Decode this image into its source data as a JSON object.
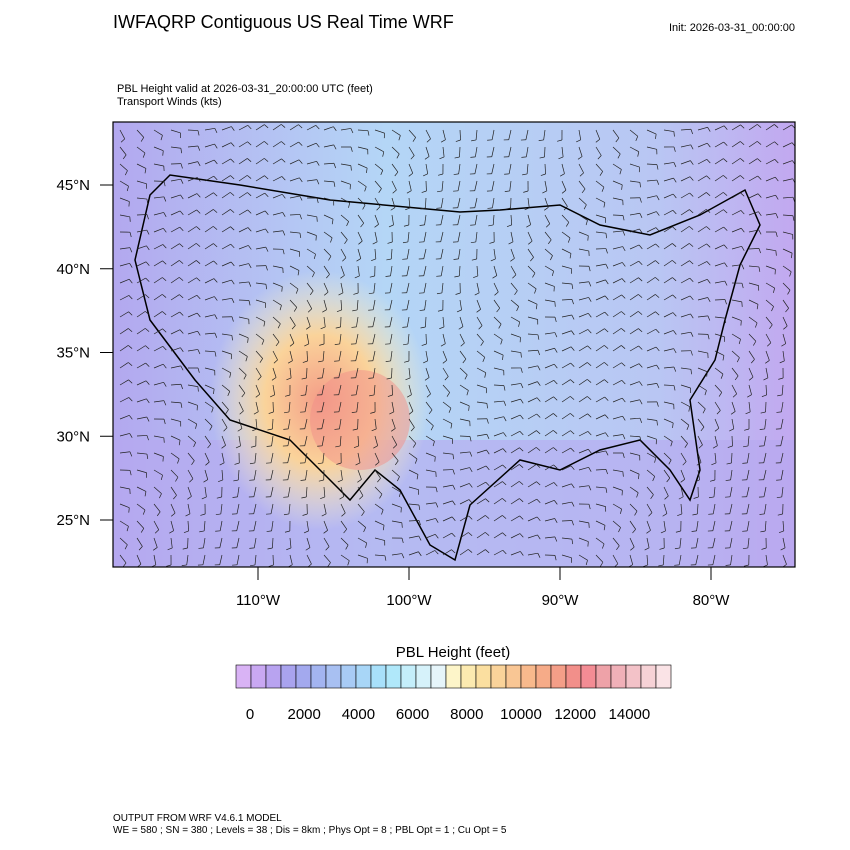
{
  "header": {
    "title": "IWFAQRP Contiguous US Real Time WRF",
    "init": "Init: 2026-03-31_00:00:00"
  },
  "subtitle": [
    "PBL Height valid at 2026-03-31_20:00:00 UTC   (feet)",
    "Transport Winds   (kts)"
  ],
  "map": {
    "lat_ticks": [
      {
        "value": 45,
        "label": "45°N"
      },
      {
        "value": 40,
        "label": "40°N"
      },
      {
        "value": 35,
        "label": "35°N"
      },
      {
        "value": 30,
        "label": "30°N"
      },
      {
        "value": 25,
        "label": "25°N"
      }
    ],
    "lon_ticks": [
      {
        "value": -110,
        "label": "110°W"
      },
      {
        "value": -100,
        "label": "100°W"
      },
      {
        "value": -90,
        "label": "90°W"
      },
      {
        "value": -80,
        "label": "80°W"
      }
    ]
  },
  "colorbar": {
    "title": "PBL Height  (feet)",
    "ticks": [
      0,
      2000,
      4000,
      6000,
      8000,
      10000,
      12000,
      14000
    ],
    "colors": [
      "#d9b3f5",
      "#c9a8f2",
      "#b8a3f0",
      "#a9a3ee",
      "#a3a9ee",
      "#a3b4f0",
      "#a8c0f2",
      "#a8cbf5",
      "#a8d6f7",
      "#a8e0fa",
      "#b0e8fa",
      "#c4eefa",
      "#d6f2fa",
      "#e6f5fa",
      "#fdf5c9",
      "#fceab0",
      "#fbdfa0",
      "#fad39a",
      "#f9c694",
      "#f8b98c",
      "#f6ab88",
      "#f49e88",
      "#f28f8a",
      "#f38c94",
      "#eea2a8",
      "#f0b0b8",
      "#f3c2c8",
      "#f6d2d6",
      "#fae3e6"
    ]
  },
  "footer": [
    "OUTPUT FROM WRF V4.6.1 MODEL",
    "WE = 580 ; SN = 380 ; Levels = 38 ; Dis = 8km ; Phys Opt = 8 ; PBL Opt = 1 ; Cu Opt = 5"
  ]
}
